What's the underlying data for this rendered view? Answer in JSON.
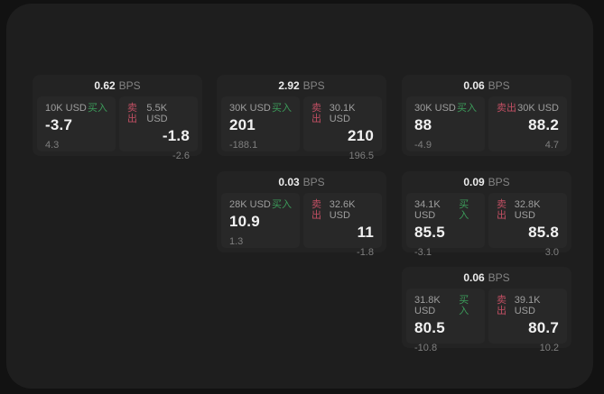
{
  "labels": {
    "bps_unit": "BPS",
    "buy": "买入",
    "sell": "卖出"
  },
  "colors": {
    "backdrop": "#121212",
    "window_bg": "#1e1e1e",
    "card_bg": "#232323",
    "panel_bg": "#282828",
    "buy_green": "#3c9b5a",
    "sell_red": "#c14f63",
    "value_text": "#f1f1f1",
    "muted_text": "#7f7f7f"
  },
  "cards": [
    {
      "bps": "0.62",
      "buy": {
        "notional": "10K USD",
        "value": "-3.7",
        "change": "4.3"
      },
      "sell": {
        "notional": "5.5K USD",
        "value": "-1.8",
        "change": "-2.6"
      }
    },
    {
      "bps": "2.92",
      "buy": {
        "notional": "30K USD",
        "value": "201",
        "change": "-188.1"
      },
      "sell": {
        "notional": "30.1K USD",
        "value": "210",
        "change": "196.5"
      }
    },
    {
      "bps": "0.06",
      "buy": {
        "notional": "30K USD",
        "value": "88",
        "change": "-4.9"
      },
      "sell": {
        "notional": "30K USD",
        "value": "88.2",
        "change": "4.7"
      }
    },
    {
      "bps": "0.03",
      "buy": {
        "notional": "28K USD",
        "value": "10.9",
        "change": "1.3"
      },
      "sell": {
        "notional": "32.6K USD",
        "value": "11",
        "change": "-1.8"
      }
    },
    {
      "bps": "0.09",
      "buy": {
        "notional": "34.1K USD",
        "value": "85.5",
        "change": "-3.1"
      },
      "sell": {
        "notional": "32.8K USD",
        "value": "85.8",
        "change": "3.0"
      }
    },
    {
      "bps": "0.06",
      "buy": {
        "notional": "31.8K USD",
        "value": "80.5",
        "change": "-10.8"
      },
      "sell": {
        "notional": "39.1K USD",
        "value": "80.7",
        "change": "10.2"
      }
    }
  ]
}
